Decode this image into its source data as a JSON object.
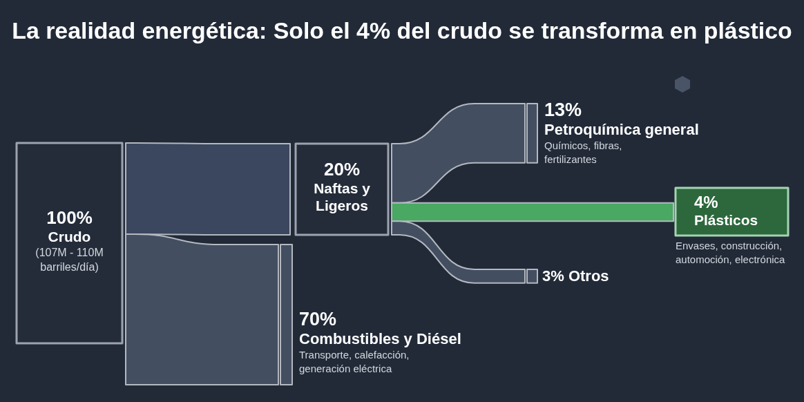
{
  "chart_data": {
    "type": "other",
    "title": "La realidad energética: Solo el 4% del crudo se transforma en plástico",
    "categories": [
      "Crudo",
      "Naftas y Ligeros",
      "Combustibles y Diésel",
      "Petroquímica general",
      "Plásticos",
      "Otros"
    ],
    "values": [
      100,
      20,
      70,
      13,
      4,
      3
    ],
    "value_labels": [
      "100%",
      "20%",
      "70%",
      "13%",
      "4%",
      "3%"
    ],
    "colors": [
      "#242c3a",
      "#242c3a",
      "#434e61",
      "#434e61",
      "#2d683d",
      "#434e61"
    ],
    "annotations": [
      "(107M - 110M barriles/día)",
      "Transporte, calefacción, generación eléctrica",
      "Químicos, fibras, fertilizantes",
      "Envases, construcción, automoción, electrónica"
    ]
  }
}
